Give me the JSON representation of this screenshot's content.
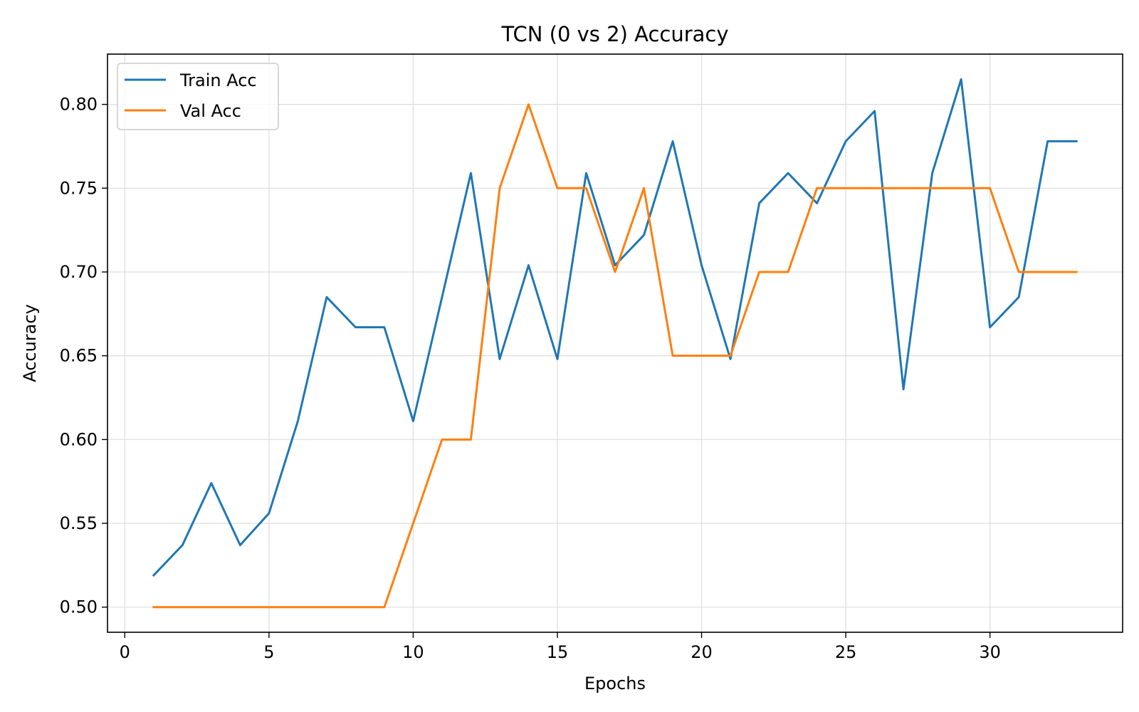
{
  "chart_data": {
    "type": "line",
    "title": "TCN (0 vs 2) Accuracy",
    "xlabel": "Epochs",
    "ylabel": "Accuracy",
    "xlim": [
      -0.6,
      34.6
    ],
    "ylim": [
      0.485,
      0.83
    ],
    "xticks": [
      0,
      5,
      10,
      15,
      20,
      25,
      30
    ],
    "xtick_labels": [
      "0",
      "5",
      "10",
      "15",
      "20",
      "25",
      "30"
    ],
    "yticks": [
      0.5,
      0.55,
      0.6,
      0.65,
      0.7,
      0.75,
      0.8
    ],
    "ytick_labels": [
      "0.50",
      "0.55",
      "0.60",
      "0.65",
      "0.70",
      "0.75",
      "0.80"
    ],
    "grid": true,
    "legend_position": "top-left",
    "x": [
      1,
      2,
      3,
      4,
      5,
      6,
      7,
      8,
      9,
      10,
      11,
      12,
      13,
      14,
      15,
      16,
      17,
      18,
      19,
      20,
      21,
      22,
      23,
      24,
      25,
      26,
      27,
      28,
      29,
      30,
      31,
      32,
      33
    ],
    "series": [
      {
        "name": "Train Acc",
        "color": "#1f77b4",
        "values": [
          0.519,
          0.537,
          0.574,
          0.537,
          0.556,
          0.611,
          0.685,
          0.667,
          0.667,
          0.611,
          0.685,
          0.759,
          0.648,
          0.704,
          0.648,
          0.759,
          0.704,
          0.722,
          0.778,
          0.704,
          0.648,
          0.741,
          0.759,
          0.741,
          0.778,
          0.796,
          0.63,
          0.759,
          0.815,
          0.667,
          0.685,
          0.778,
          0.778
        ]
      },
      {
        "name": "Val Acc",
        "color": "#ff7f0e",
        "values": [
          0.5,
          0.5,
          0.5,
          0.5,
          0.5,
          0.5,
          0.5,
          0.5,
          0.5,
          0.55,
          0.6,
          0.6,
          0.75,
          0.8,
          0.75,
          0.75,
          0.7,
          0.75,
          0.65,
          0.65,
          0.65,
          0.7,
          0.7,
          0.75,
          0.75,
          0.75,
          0.75,
          0.75,
          0.75,
          0.75,
          0.7,
          0.7,
          0.7
        ]
      }
    ]
  }
}
